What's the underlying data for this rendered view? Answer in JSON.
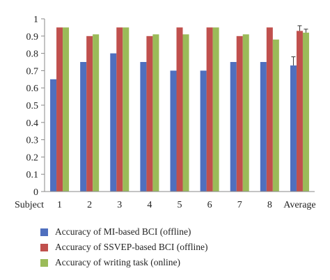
{
  "chart_data": {
    "type": "bar",
    "x_axis_prefix": "Subject",
    "categories": [
      "1",
      "2",
      "3",
      "4",
      "5",
      "6",
      "7",
      "8",
      "Average"
    ],
    "ylim": [
      0,
      1
    ],
    "yticks": [
      "0",
      "0.1",
      "0.2",
      "0.3",
      "0.4",
      "0.5",
      "0.6",
      "0.7",
      "0.8",
      "0.9",
      "1"
    ],
    "grid": false,
    "legend_position": "bottom",
    "series": [
      {
        "name": "Accuracy of MI-based BCI (offline)",
        "color": "#4F6FBE",
        "values": [
          0.65,
          0.75,
          0.8,
          0.75,
          0.7,
          0.7,
          0.75,
          0.75,
          0.73
        ],
        "error_average": 0.05
      },
      {
        "name": "Accuracy of SSVEP-based BCI (offline)",
        "color": "#C0504D",
        "values": [
          0.95,
          0.9,
          0.95,
          0.9,
          0.95,
          0.95,
          0.9,
          0.95,
          0.93
        ],
        "error_average": 0.03
      },
      {
        "name": "Accuracy of writing task (online)",
        "color": "#9BBB59",
        "values": [
          0.95,
          0.91,
          0.95,
          0.91,
          0.91,
          0.95,
          0.91,
          0.88,
          0.92
        ],
        "error_average": 0.02
      }
    ]
  }
}
